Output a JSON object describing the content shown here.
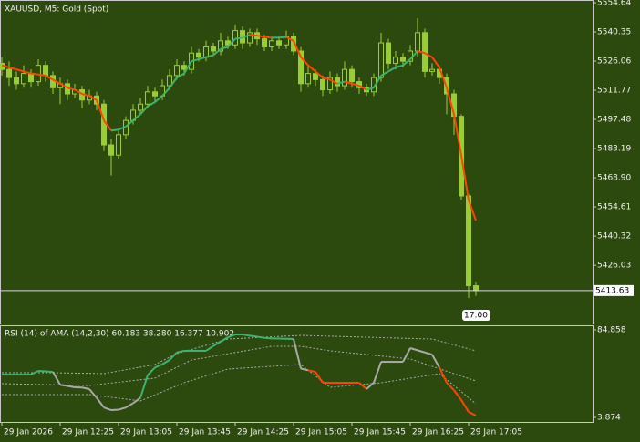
{
  "chart_data": [
    {
      "type": "candlestick",
      "title": "XAUUSD, M5:  Gold (Spot)",
      "open": [
        5525,
        5522,
        5518,
        5515,
        5520,
        5516,
        5524,
        5519,
        5513,
        5515,
        5510,
        5512,
        5507,
        5509,
        5505,
        5485,
        5480,
        5490,
        5497,
        5502,
        5505,
        5511,
        5509,
        5514,
        5519,
        5524,
        5522,
        5530,
        5528,
        5533,
        5531,
        5536,
        5534,
        5541,
        5535,
        5540,
        5537,
        5533,
        5536,
        5534,
        5538,
        5531,
        5515,
        5520,
        5517,
        5512,
        5518,
        5514,
        5522,
        5516,
        5513,
        5511,
        5518,
        5535,
        5525,
        5528,
        5526,
        5531,
        5540,
        5521,
        5522,
        5518,
        5510,
        5499,
        5460,
        5416
      ],
      "high": [
        5528,
        5526,
        5521,
        5524,
        5522,
        5527,
        5526,
        5521,
        5518,
        5517,
        5515,
        5514,
        5512,
        5511,
        5507,
        5488,
        5492,
        5499,
        5505,
        5508,
        5514,
        5513,
        5517,
        5522,
        5527,
        5526,
        5533,
        5532,
        5536,
        5535,
        5540,
        5538,
        5544,
        5543,
        5542,
        5542,
        5539,
        5538,
        5538,
        5541,
        5540,
        5533,
        5524,
        5522,
        5519,
        5521,
        5520,
        5526,
        5524,
        5518,
        5515,
        5520,
        5540,
        5537,
        5531,
        5530,
        5534,
        5547,
        5542,
        5525,
        5524,
        5520,
        5512,
        5500,
        5461,
        5418
      ],
      "low": [
        5519,
        5514,
        5512,
        5513,
        5513,
        5514,
        5516,
        5510,
        5505,
        5507,
        5508,
        5503,
        5505,
        5502,
        5482,
        5470,
        5478,
        5488,
        5495,
        5500,
        5503,
        5506,
        5507,
        5512,
        5517,
        5519,
        5520,
        5526,
        5526,
        5529,
        5529,
        5532,
        5532,
        5532,
        5533,
        5534,
        5531,
        5531,
        5532,
        5532,
        5529,
        5511,
        5513,
        5514,
        5509,
        5510,
        5511,
        5512,
        5513,
        5510,
        5509,
        5509,
        5516,
        5522,
        5522,
        5523,
        5524,
        5528,
        5518,
        5519,
        5515,
        5500,
        5490,
        5458,
        5410,
        5411
      ],
      "close": [
        5522,
        5518,
        5515,
        5520,
        5516,
        5524,
        5519,
        5513,
        5515,
        5510,
        5512,
        5507,
        5509,
        5505,
        5485,
        5480,
        5490,
        5497,
        5502,
        5505,
        5511,
        5509,
        5514,
        5519,
        5524,
        5522,
        5530,
        5528,
        5533,
        5531,
        5536,
        5534,
        5541,
        5535,
        5540,
        5537,
        5533,
        5536,
        5534,
        5538,
        5531,
        5515,
        5520,
        5517,
        5512,
        5518,
        5514,
        5522,
        5516,
        5513,
        5511,
        5518,
        5535,
        5525,
        5528,
        5526,
        5531,
        5540,
        5521,
        5522,
        5518,
        5510,
        5499,
        5460,
        5416,
        5413.63
      ],
      "candle_color": "#9acd32",
      "ama": {
        "values": [
          5524,
          5523,
          5522,
          5521,
          5520,
          5519.5,
          5519,
          5517,
          5515,
          5513,
          5512,
          5510,
          5509,
          5507,
          5497,
          5492,
          5492.5,
          5494,
          5497,
          5500,
          5504,
          5506,
          5509,
          5513,
          5518,
          5520,
          5526,
          5527,
          5528,
          5529,
          5532,
          5533,
          5537,
          5537.5,
          5539,
          5538.5,
          5538,
          5537.5,
          5537.6,
          5537.8,
          5536,
          5528,
          5524,
          5521,
          5518,
          5517,
          5515,
          5516,
          5515,
          5514,
          5512,
          5513,
          5519,
          5521,
          5523,
          5524,
          5527,
          5531,
          5530,
          5528,
          5523,
          5513,
          5500,
          5480,
          5458,
          5448
        ],
        "up_color": "#3cb371",
        "down_color": "#ff4500"
      },
      "time_marker": "17:00",
      "xlim": [
        -0.25,
        81
      ],
      "ylim": [
        5397.5,
        5556.0
      ],
      "yticks": [
        5554.64,
        5540.35,
        5526.06,
        5511.77,
        5497.48,
        5483.19,
        {
          "value": 5468.9,
          "label": "5468.90"
        },
        5454.61,
        5440.32,
        5426.03
      ]
    },
    {
      "type": "line",
      "title": "RSI (14) of AMA (14,2,30) 60.183 38.280 16.377 10.902",
      "values": [
        43.5,
        43.5,
        43.5,
        43.5,
        43.5,
        46.9,
        46.5,
        46,
        34,
        33,
        31.7,
        31.5,
        30,
        22,
        13,
        10.6,
        11,
        13,
        17,
        22,
        43,
        50,
        53,
        57,
        64,
        65.5,
        65.5,
        65.5,
        65.5,
        70,
        74,
        78,
        80.6,
        80.6,
        79.5,
        78.5,
        77.5,
        77,
        76.8,
        76.6,
        76.4,
        49,
        47.5,
        46,
        36,
        35.9,
        35.9,
        35.9,
        35.9,
        35.9,
        30,
        36,
        55.3,
        55.3,
        55.3,
        55.3,
        68,
        66,
        64,
        62,
        50,
        36,
        29,
        20,
        9,
        5.6
      ],
      "colors": [
        "#3cb371",
        "#3cb371",
        "#3cb371",
        "#3cb371",
        "#3cb371",
        "#3cb371",
        "#3cb371",
        "#3cb371",
        "#a9a9a9",
        "#a9a9a9",
        "#a9a9a9",
        "#a9a9a9",
        "#a9a9a9",
        "#a9a9a9",
        "#a9a9a9",
        "#a9a9a9",
        "#a9a9a9",
        "#a9a9a9",
        "#a9a9a9",
        "#a9a9a9",
        "#3cb371",
        "#3cb371",
        "#3cb371",
        "#3cb371",
        "#3cb371",
        "#3cb371",
        "#3cb371",
        "#3cb371",
        "#3cb371",
        "#3cb371",
        "#3cb371",
        "#3cb371",
        "#3cb371",
        "#3cb371",
        "#3cb371",
        "#3cb371",
        "#3cb371",
        "#3cb371",
        "#3cb371",
        "#3cb371",
        "#3cb371",
        "#a9a9a9",
        "#a9a9a9",
        "#ff4500",
        "#ff4500",
        "#ff4500",
        "#ff4500",
        "#ff4500",
        "#ff4500",
        "#ff4500",
        "#ff4500",
        "#a9a9a9",
        "#a9a9a9",
        "#a9a9a9",
        "#a9a9a9",
        "#a9a9a9",
        "#a9a9a9",
        "#a9a9a9",
        "#a9a9a9",
        "#a9a9a9",
        "#a9a9a9",
        "#ff4500",
        "#ff4500",
        "#ff4500",
        "#ff4500",
        "#ff4500"
      ],
      "bands": [
        {
          "x": [
            0,
            7,
            14,
            21,
            24,
            31,
            41,
            59,
            65
          ],
          "values": [
            45.2,
            45.2,
            44.4,
            52.8,
            62.9,
            76.4,
            79.8,
            76.4,
            65.5
          ],
          "color": "#a9a9a9"
        },
        {
          "x": [
            0,
            12,
            21,
            26,
            37,
            41,
            45,
            56,
            65
          ],
          "values": [
            35.1,
            33.4,
            40.2,
            57,
            69.7,
            69.7,
            65.5,
            57.9,
            37.6
          ],
          "color": "#a9a9a9"
        },
        {
          "x": [
            0,
            12,
            19,
            25,
            31,
            41,
            45,
            52,
            60,
            65
          ],
          "values": [
            25,
            25,
            19.1,
            36,
            48.6,
            52.8,
            31.7,
            35.9,
            44.4,
            16.5
          ],
          "color": "#a9a9a9"
        }
      ],
      "xlim": [
        -0.25,
        81
      ],
      "ylim": [
        -0.34,
        89.08
      ],
      "yticks": [
        84.858,
        3.874
      ],
      "xticks": [
        {
          "value": 0,
          "label": "29 Jan 2026"
        },
        {
          "value": 8,
          "label": "29 Jan 12:25"
        },
        {
          "value": 16,
          "label": "29 Jan 13:05"
        },
        {
          "value": 24,
          "label": "29 Jan 13:45"
        },
        {
          "value": 32,
          "label": "29 Jan 14:25"
        },
        {
          "value": 40,
          "label": "29 Jan 15:05"
        },
        {
          "value": 48,
          "label": "29 Jan 15:45"
        },
        {
          "value": 56,
          "label": "29 Jan 16:25"
        },
        {
          "value": 64,
          "label": "29 Jan 17:05"
        }
      ]
    }
  ]
}
